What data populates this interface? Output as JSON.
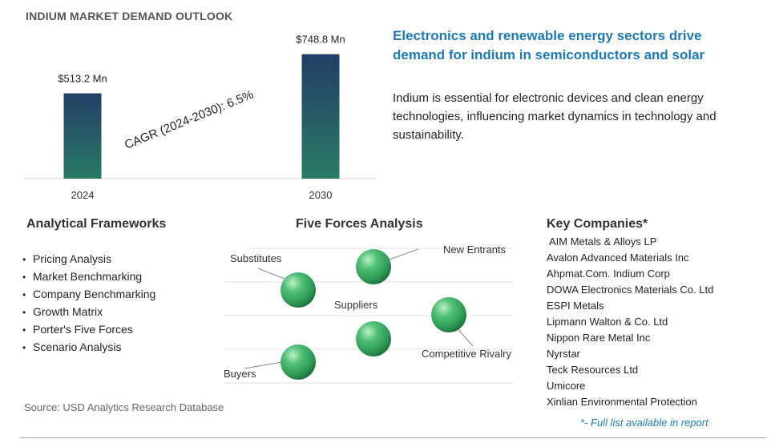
{
  "page": {
    "title": "INDIUM MARKET DEMAND OUTLOOK"
  },
  "chart_data": {
    "type": "bar",
    "categories": [
      "2024",
      "2030"
    ],
    "values": [
      513.2,
      748.8
    ],
    "value_labels": [
      "$513.2 Mn",
      "$748.8 Mn"
    ],
    "annotation": "CAGR (2024-2030):  6.5%",
    "colors": {
      "bar_top": "#233f66",
      "bar_bottom": "#2a7a66"
    },
    "ylim": [
      0,
      800
    ],
    "grid": false,
    "legend": "none"
  },
  "headline": "Electronics and renewable energy sectors drive demand for indium in semiconductors and solar",
  "summary": "Indium is essential for electronic devices and clean energy technologies, influencing market dynamics in technology and sustainability.",
  "frameworks": {
    "title": "Analytical Frameworks",
    "items": [
      "Pricing Analysis",
      "Market Benchmarking",
      "Company Benchmarking",
      "Growth Matrix",
      "Porter's Five Forces",
      "Scenario Analysis"
    ]
  },
  "five_forces": {
    "title": "Five Forces Analysis",
    "labels": {
      "substitutes": "Substitutes",
      "new_entrants": "New Entrants",
      "suppliers": "Suppliers",
      "competitive_rivalry": "Competitive Rivalry",
      "buyers": "Buyers"
    },
    "sphere_color": "#2f9a57"
  },
  "companies": {
    "title": "Key Companies*",
    "items": [
      "AIM Metals & Alloys LP",
      "Avalon Advanced Materials Inc",
      "Ahpmat.Com. Indium Corp",
      "DOWA Electronics Materials Co. Ltd",
      "ESPI Metals",
      "Lipmann Walton & Co. Ltd",
      "Nippon Rare Metal Inc",
      "Nyrstar",
      "Teck Resources Ltd",
      "Umicore",
      "Xinlian Environmental Protection"
    ],
    "note": "*- Full list available in report"
  },
  "source": "Source: USD Analytics Research Database"
}
